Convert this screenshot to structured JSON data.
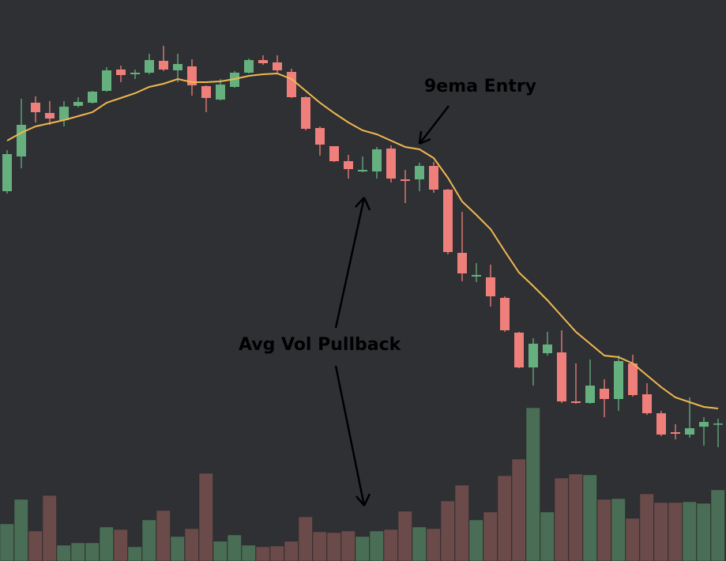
{
  "chart_data": {
    "type": "candlestick",
    "ylim": [
      -1,
      70
    ],
    "volume_ylim": [
      0,
      200
    ],
    "up_color": "#66b07f",
    "down_color": "#ef7f7a",
    "volume_up_color": "#4a6e55",
    "volume_down_color": "#6b4a4a",
    "ema_color": "#f0b84f",
    "open": [
      45.8,
      50.2,
      57.0,
      55.7,
      54.8,
      56.6,
      57.0,
      58.5,
      61.2,
      60.6,
      60.8,
      62.3,
      61.1,
      61.6,
      59.1,
      57.4,
      59.0,
      60.8,
      62.4,
      62.1,
      60.9,
      57.7,
      53.8,
      51.5,
      49.6,
      48.3,
      48.3,
      51.2,
      47.3,
      47.3,
      49.0,
      46.0,
      38.0,
      35.0,
      34.9,
      32.3,
      27.9,
      23.5,
      25.3,
      25.4,
      19.2,
      19.0,
      20.8,
      19.5,
      24.0,
      20.1,
      17.7,
      15.3,
      15.0,
      16.0,
      16.3
    ],
    "high": [
      51.0,
      57.5,
      57.8,
      57.2,
      57.2,
      57.7,
      58.5,
      61.5,
      61.7,
      61.2,
      63.2,
      64.2,
      63.2,
      62.5,
      59.2,
      60.0,
      61.0,
      62.6,
      63.0,
      63.0,
      61.3,
      57.8,
      54.0,
      51.5,
      50.4,
      50.2,
      51.4,
      51.6,
      48.5,
      49.4,
      49.5,
      46.1,
      43.2,
      36.7,
      36.5,
      32.5,
      28.0,
      27.2,
      28.0,
      28.2,
      24.0,
      24.5,
      22.0,
      25.0,
      25.1,
      21.5,
      18.0,
      16.3,
      19.7,
      17.2,
      17.0
    ],
    "low": [
      45.5,
      48.7,
      54.5,
      54.2,
      54.0,
      56.4,
      56.9,
      58.4,
      59.6,
      60.0,
      60.6,
      61.0,
      59.6,
      57.9,
      55.8,
      57.3,
      58.9,
      60.7,
      61.8,
      60.8,
      57.6,
      53.5,
      50.3,
      49.5,
      47.4,
      48.2,
      47.4,
      46.9,
      44.3,
      45.8,
      45.6,
      37.8,
      34.4,
      34.3,
      31.2,
      28.0,
      23.4,
      21.2,
      25.0,
      19.0,
      18.9,
      18.9,
      17.2,
      18.0,
      19.8,
      17.5,
      14.8,
      14.4,
      14.6,
      13.6,
      13.4
    ],
    "close": [
      50.5,
      54.2,
      55.8,
      55.0,
      56.5,
      57.1,
      58.4,
      61.1,
      60.5,
      60.8,
      62.4,
      61.2,
      61.9,
      59.2,
      57.6,
      59.3,
      60.8,
      62.4,
      62.0,
      61.1,
      57.7,
      53.7,
      51.7,
      49.6,
      48.6,
      48.5,
      51.1,
      47.4,
      47.1,
      49.0,
      46.0,
      38.1,
      35.4,
      35.2,
      32.5,
      28.2,
      23.5,
      26.5,
      26.4,
      19.2,
      19.0,
      21.2,
      19.5,
      24.3,
      20.0,
      17.7,
      15.0,
      15.1,
      15.8,
      16.6,
      16.4
    ],
    "volume": [
      47,
      78,
      38,
      83,
      20,
      23,
      23,
      43,
      40,
      18,
      52,
      64,
      31,
      41,
      111,
      25,
      33,
      20,
      18,
      19,
      25,
      56,
      37,
      36,
      38,
      31,
      38,
      40,
      63,
      43,
      41,
      76,
      96,
      52,
      62,
      108,
      129,
      194,
      62,
      105,
      110,
      109,
      78,
      79,
      54,
      85,
      74,
      74,
      75,
      73,
      90
    ],
    "ema": [
      52.2,
      53.2,
      54.0,
      54.4,
      54.8,
      55.3,
      55.8,
      57.0,
      57.6,
      58.2,
      59.0,
      59.4,
      60.0,
      59.6,
      59.6,
      59.7,
      60.0,
      60.4,
      60.6,
      60.7,
      60.0,
      58.5,
      57.0,
      55.7,
      54.5,
      53.5,
      53.0,
      52.2,
      51.4,
      51.1,
      50.0,
      47.5,
      44.5,
      42.8,
      41.0,
      38.2,
      35.5,
      33.8,
      32.0,
      30.0,
      28.0,
      26.5,
      25.0,
      24.8,
      24.0,
      22.5,
      21.0,
      19.7,
      19.1,
      18.5,
      18.3
    ],
    "annotations": [
      {
        "text": "9ema Entry"
      },
      {
        "text": "Avg Vol Pullback"
      }
    ]
  }
}
